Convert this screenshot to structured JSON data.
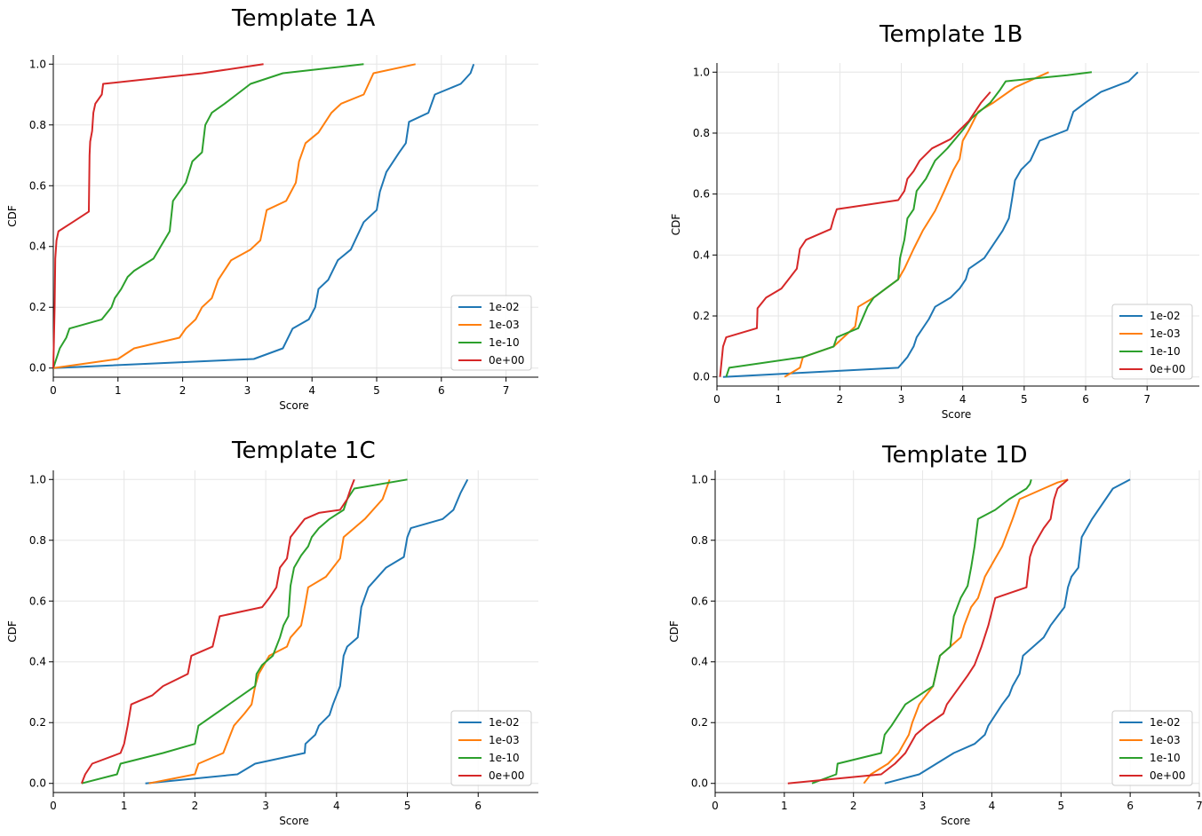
{
  "colors": {
    "1e-02": "#1f77b4",
    "1e-03": "#ff7f0e",
    "1e-10": "#2ca02c",
    "0e+00": "#d62728"
  },
  "chart_data": [
    {
      "type": "line",
      "title": "Template 1A",
      "xlabel": "Score",
      "ylabel": "CDF",
      "xlim": [
        0,
        7.5
      ],
      "ylim": [
        -0.03,
        1.03
      ],
      "xticks": [
        "0",
        "1",
        "2",
        "3",
        "4",
        "5",
        "6",
        "7"
      ],
      "yticks": [
        "0.0",
        "0.2",
        "0.4",
        "0.6",
        "0.8",
        "1.0"
      ],
      "grid": true,
      "legend_position": "bottom-right",
      "series": [
        {
          "name": "1e-02",
          "x": [
            0.0,
            3.1,
            3.55,
            3.7,
            3.95,
            4.05,
            4.1,
            4.25,
            4.4,
            4.6,
            4.8,
            5.0,
            5.05,
            5.15,
            5.35,
            5.45,
            5.5,
            5.8,
            5.9,
            6.3,
            6.45,
            6.5
          ],
          "y": [
            0.0,
            0.03,
            0.065,
            0.13,
            0.16,
            0.2,
            0.26,
            0.29,
            0.355,
            0.39,
            0.48,
            0.52,
            0.58,
            0.645,
            0.71,
            0.74,
            0.81,
            0.84,
            0.9,
            0.935,
            0.97,
            1.0
          ]
        },
        {
          "name": "1e-03",
          "x": [
            0.0,
            1.0,
            1.25,
            1.95,
            2.05,
            2.2,
            2.3,
            2.45,
            2.55,
            2.75,
            3.05,
            3.2,
            3.3,
            3.6,
            3.75,
            3.8,
            3.9,
            4.1,
            4.3,
            4.45,
            4.8,
            4.95,
            5.6
          ],
          "y": [
            0.0,
            0.03,
            0.065,
            0.1,
            0.13,
            0.16,
            0.2,
            0.23,
            0.29,
            0.355,
            0.39,
            0.42,
            0.52,
            0.55,
            0.61,
            0.68,
            0.74,
            0.775,
            0.84,
            0.87,
            0.9,
            0.97,
            1.0
          ]
        },
        {
          "name": "1e-10",
          "x": [
            0.0,
            0.1,
            0.2,
            0.25,
            0.75,
            0.9,
            0.95,
            1.05,
            1.15,
            1.25,
            1.55,
            1.8,
            1.85,
            1.95,
            2.05,
            2.15,
            2.3,
            2.35,
            2.45,
            2.65,
            3.05,
            3.55,
            4.8
          ],
          "y": [
            0.0,
            0.065,
            0.1,
            0.13,
            0.16,
            0.2,
            0.23,
            0.26,
            0.3,
            0.32,
            0.36,
            0.45,
            0.55,
            0.58,
            0.61,
            0.68,
            0.71,
            0.8,
            0.84,
            0.87,
            0.935,
            0.97,
            1.0
          ]
        },
        {
          "name": "0e+00",
          "x": [
            0.0,
            0.02,
            0.03,
            0.05,
            0.08,
            0.3,
            0.55,
            0.56,
            0.57,
            0.6,
            0.62,
            0.65,
            0.75,
            0.77,
            2.3,
            3.25
          ],
          "y": [
            0.0,
            0.2,
            0.36,
            0.42,
            0.45,
            0.48,
            0.515,
            0.7,
            0.745,
            0.78,
            0.84,
            0.87,
            0.9,
            0.935,
            0.97,
            1.0
          ]
        }
      ]
    },
    {
      "type": "line",
      "title": "Template 1B",
      "xlabel": "Score",
      "ylabel": "CDF",
      "xlim": [
        0,
        7.85
      ],
      "ylim": [
        -0.03,
        1.03
      ],
      "xticks": [
        "0",
        "1",
        "2",
        "3",
        "4",
        "5",
        "6",
        "7"
      ],
      "yticks": [
        "0.0",
        "0.2",
        "0.4",
        "0.6",
        "0.8",
        "1.0"
      ],
      "grid": true,
      "legend_position": "bottom-right",
      "series": [
        {
          "name": "1e-02",
          "x": [
            0.1,
            2.95,
            3.1,
            3.2,
            3.25,
            3.45,
            3.55,
            3.8,
            3.95,
            4.05,
            4.1,
            4.35,
            4.55,
            4.65,
            4.75,
            4.8,
            4.85,
            4.95,
            5.1,
            5.25,
            5.7,
            5.8,
            6.0,
            6.25,
            6.7,
            6.85
          ],
          "y": [
            0.0,
            0.03,
            0.065,
            0.1,
            0.13,
            0.19,
            0.23,
            0.26,
            0.29,
            0.32,
            0.355,
            0.39,
            0.45,
            0.48,
            0.52,
            0.58,
            0.645,
            0.68,
            0.71,
            0.775,
            0.81,
            0.87,
            0.9,
            0.935,
            0.97,
            1.0
          ]
        },
        {
          "name": "1e-03",
          "x": [
            1.1,
            1.35,
            1.4,
            1.9,
            2.25,
            2.3,
            2.55,
            2.75,
            2.95,
            3.05,
            3.2,
            3.35,
            3.55,
            3.7,
            3.85,
            3.95,
            4.0,
            4.1,
            4.25,
            4.5,
            4.85,
            5.4
          ],
          "y": [
            0.0,
            0.03,
            0.065,
            0.1,
            0.165,
            0.23,
            0.26,
            0.29,
            0.32,
            0.355,
            0.42,
            0.48,
            0.545,
            0.61,
            0.68,
            0.715,
            0.775,
            0.81,
            0.87,
            0.9,
            0.95,
            1.0
          ]
        },
        {
          "name": "1e-10",
          "x": [
            0.15,
            0.2,
            1.4,
            1.9,
            1.95,
            2.3,
            2.45,
            2.55,
            2.75,
            2.95,
            2.98,
            3.05,
            3.1,
            3.2,
            3.25,
            3.4,
            3.55,
            3.75,
            4.0,
            4.15,
            4.45,
            4.6,
            4.7,
            5.7,
            6.1
          ],
          "y": [
            0.0,
            0.03,
            0.065,
            0.1,
            0.13,
            0.16,
            0.23,
            0.26,
            0.29,
            0.32,
            0.39,
            0.45,
            0.52,
            0.55,
            0.61,
            0.65,
            0.71,
            0.75,
            0.81,
            0.85,
            0.9,
            0.94,
            0.97,
            0.99,
            1.0
          ]
        },
        {
          "name": "0e+00",
          "x": [
            0.05,
            0.1,
            0.15,
            0.65,
            0.66,
            0.8,
            1.05,
            1.3,
            1.35,
            1.45,
            1.85,
            1.9,
            1.95,
            2.95,
            3.05,
            3.1,
            3.2,
            3.3,
            3.5,
            3.8,
            3.95,
            4.0,
            4.1,
            4.2,
            4.3,
            4.45
          ],
          "y": [
            0.0,
            0.1,
            0.13,
            0.16,
            0.225,
            0.26,
            0.29,
            0.355,
            0.42,
            0.45,
            0.485,
            0.52,
            0.55,
            0.58,
            0.61,
            0.65,
            0.675,
            0.71,
            0.75,
            0.78,
            0.81,
            0.82,
            0.84,
            0.87,
            0.9,
            0.935
          ]
        }
      ]
    },
    {
      "type": "line",
      "title": "Template 1C",
      "xlabel": "Score",
      "ylabel": "CDF",
      "xlim": [
        0,
        6.85
      ],
      "ylim": [
        -0.03,
        1.03
      ],
      "xticks": [
        "0",
        "1",
        "2",
        "3",
        "4",
        "5",
        "6"
      ],
      "yticks": [
        "0.0",
        "0.2",
        "0.4",
        "0.6",
        "0.8",
        "1.0"
      ],
      "grid": true,
      "legend_position": "bottom-right",
      "series": [
        {
          "name": "1e-02",
          "x": [
            1.3,
            2.6,
            2.85,
            3.55,
            3.56,
            3.7,
            3.75,
            3.9,
            3.95,
            4.05,
            4.1,
            4.15,
            4.3,
            4.35,
            4.45,
            4.7,
            4.95,
            5.0,
            5.05,
            5.5,
            5.65,
            5.75,
            5.85
          ],
          "y": [
            0.0,
            0.03,
            0.065,
            0.1,
            0.13,
            0.16,
            0.19,
            0.225,
            0.26,
            0.32,
            0.42,
            0.45,
            0.48,
            0.58,
            0.645,
            0.71,
            0.745,
            0.81,
            0.84,
            0.87,
            0.9,
            0.955,
            1.0
          ]
        },
        {
          "name": "1e-03",
          "x": [
            1.35,
            2.0,
            2.05,
            2.4,
            2.5,
            2.55,
            2.7,
            2.8,
            2.85,
            2.9,
            3.05,
            3.3,
            3.35,
            3.5,
            3.55,
            3.6,
            3.85,
            4.05,
            4.1,
            4.4,
            4.65,
            4.75
          ],
          "y": [
            0.0,
            0.03,
            0.065,
            0.1,
            0.16,
            0.19,
            0.23,
            0.26,
            0.32,
            0.36,
            0.42,
            0.45,
            0.48,
            0.52,
            0.58,
            0.645,
            0.68,
            0.74,
            0.81,
            0.87,
            0.935,
            1.0
          ]
        },
        {
          "name": "1e-10",
          "x": [
            0.4,
            0.9,
            0.95,
            1.55,
            2.0,
            2.05,
            2.85,
            2.87,
            2.95,
            3.1,
            3.15,
            3.2,
            3.25,
            3.32,
            3.35,
            3.4,
            3.5,
            3.6,
            3.65,
            3.75,
            3.9,
            4.1,
            4.15,
            4.25,
            5.0
          ],
          "y": [
            0.0,
            0.03,
            0.065,
            0.1,
            0.13,
            0.19,
            0.32,
            0.36,
            0.39,
            0.42,
            0.45,
            0.48,
            0.52,
            0.55,
            0.65,
            0.71,
            0.75,
            0.78,
            0.81,
            0.84,
            0.87,
            0.9,
            0.935,
            0.97,
            1.0
          ]
        },
        {
          "name": "0e+00",
          "x": [
            0.4,
            0.45,
            0.55,
            0.95,
            1.0,
            1.05,
            1.1,
            1.4,
            1.55,
            1.9,
            1.95,
            2.25,
            2.35,
            2.95,
            3.05,
            3.15,
            3.2,
            3.3,
            3.35,
            3.55,
            3.75,
            4.05,
            4.15,
            4.2,
            4.25
          ],
          "y": [
            0.0,
            0.03,
            0.065,
            0.1,
            0.13,
            0.19,
            0.26,
            0.29,
            0.32,
            0.36,
            0.42,
            0.45,
            0.55,
            0.58,
            0.61,
            0.645,
            0.71,
            0.74,
            0.81,
            0.87,
            0.89,
            0.9,
            0.935,
            0.97,
            1.0
          ]
        }
      ]
    },
    {
      "type": "line",
      "title": "Template 1D",
      "xlabel": "Score",
      "ylabel": "CDF",
      "xlim": [
        0,
        7.0
      ],
      "ylim": [
        -0.03,
        1.03
      ],
      "xticks": [
        "0",
        "1",
        "2",
        "3",
        "4",
        "5",
        "6",
        "7"
      ],
      "yticks": [
        "0.0",
        "0.2",
        "0.4",
        "0.6",
        "0.8",
        "1.0"
      ],
      "grid": true,
      "legend_position": "bottom-right",
      "series": [
        {
          "name": "1e-02",
          "x": [
            2.45,
            2.95,
            3.2,
            3.45,
            3.75,
            3.9,
            3.95,
            4.05,
            4.15,
            4.25,
            4.3,
            4.4,
            4.45,
            4.6,
            4.75,
            4.85,
            4.95,
            5.05,
            5.1,
            5.15,
            5.25,
            5.3,
            5.45,
            5.75,
            6.0
          ],
          "y": [
            0.0,
            0.03,
            0.065,
            0.1,
            0.13,
            0.16,
            0.19,
            0.225,
            0.26,
            0.29,
            0.32,
            0.36,
            0.42,
            0.45,
            0.48,
            0.52,
            0.55,
            0.58,
            0.645,
            0.68,
            0.71,
            0.81,
            0.87,
            0.97,
            1.0
          ]
        },
        {
          "name": "1e-03",
          "x": [
            2.15,
            2.25,
            2.5,
            2.65,
            2.8,
            2.85,
            2.9,
            2.95,
            3.05,
            3.15,
            3.25,
            3.4,
            3.55,
            3.6,
            3.7,
            3.8,
            3.9,
            4.05,
            4.15,
            4.25,
            4.3,
            4.4,
            4.75,
            4.95,
            5.1
          ],
          "y": [
            0.0,
            0.03,
            0.065,
            0.1,
            0.16,
            0.2,
            0.23,
            0.26,
            0.29,
            0.32,
            0.42,
            0.45,
            0.48,
            0.52,
            0.58,
            0.61,
            0.68,
            0.74,
            0.78,
            0.84,
            0.87,
            0.935,
            0.97,
            0.99,
            1.0
          ]
        },
        {
          "name": "1e-10",
          "x": [
            1.4,
            1.75,
            1.77,
            2.4,
            2.45,
            2.55,
            2.75,
            2.95,
            3.15,
            3.25,
            3.4,
            3.45,
            3.55,
            3.65,
            3.7,
            3.75,
            3.8,
            4.05,
            4.25,
            4.5,
            4.55,
            4.57
          ],
          "y": [
            0.0,
            0.03,
            0.065,
            0.1,
            0.16,
            0.19,
            0.26,
            0.29,
            0.32,
            0.42,
            0.45,
            0.55,
            0.61,
            0.65,
            0.71,
            0.78,
            0.87,
            0.9,
            0.935,
            0.97,
            0.985,
            1.0
          ]
        },
        {
          "name": "0e+00",
          "x": [
            1.05,
            2.4,
            2.6,
            2.75,
            2.9,
            3.05,
            3.3,
            3.35,
            3.65,
            3.75,
            3.85,
            3.95,
            4.05,
            4.5,
            4.55,
            4.6,
            4.7,
            4.75,
            4.85,
            4.9,
            4.95,
            5.1
          ],
          "y": [
            0.0,
            0.03,
            0.065,
            0.1,
            0.16,
            0.19,
            0.23,
            0.26,
            0.355,
            0.39,
            0.45,
            0.52,
            0.61,
            0.645,
            0.745,
            0.78,
            0.82,
            0.84,
            0.87,
            0.935,
            0.97,
            1.0
          ]
        }
      ]
    }
  ]
}
